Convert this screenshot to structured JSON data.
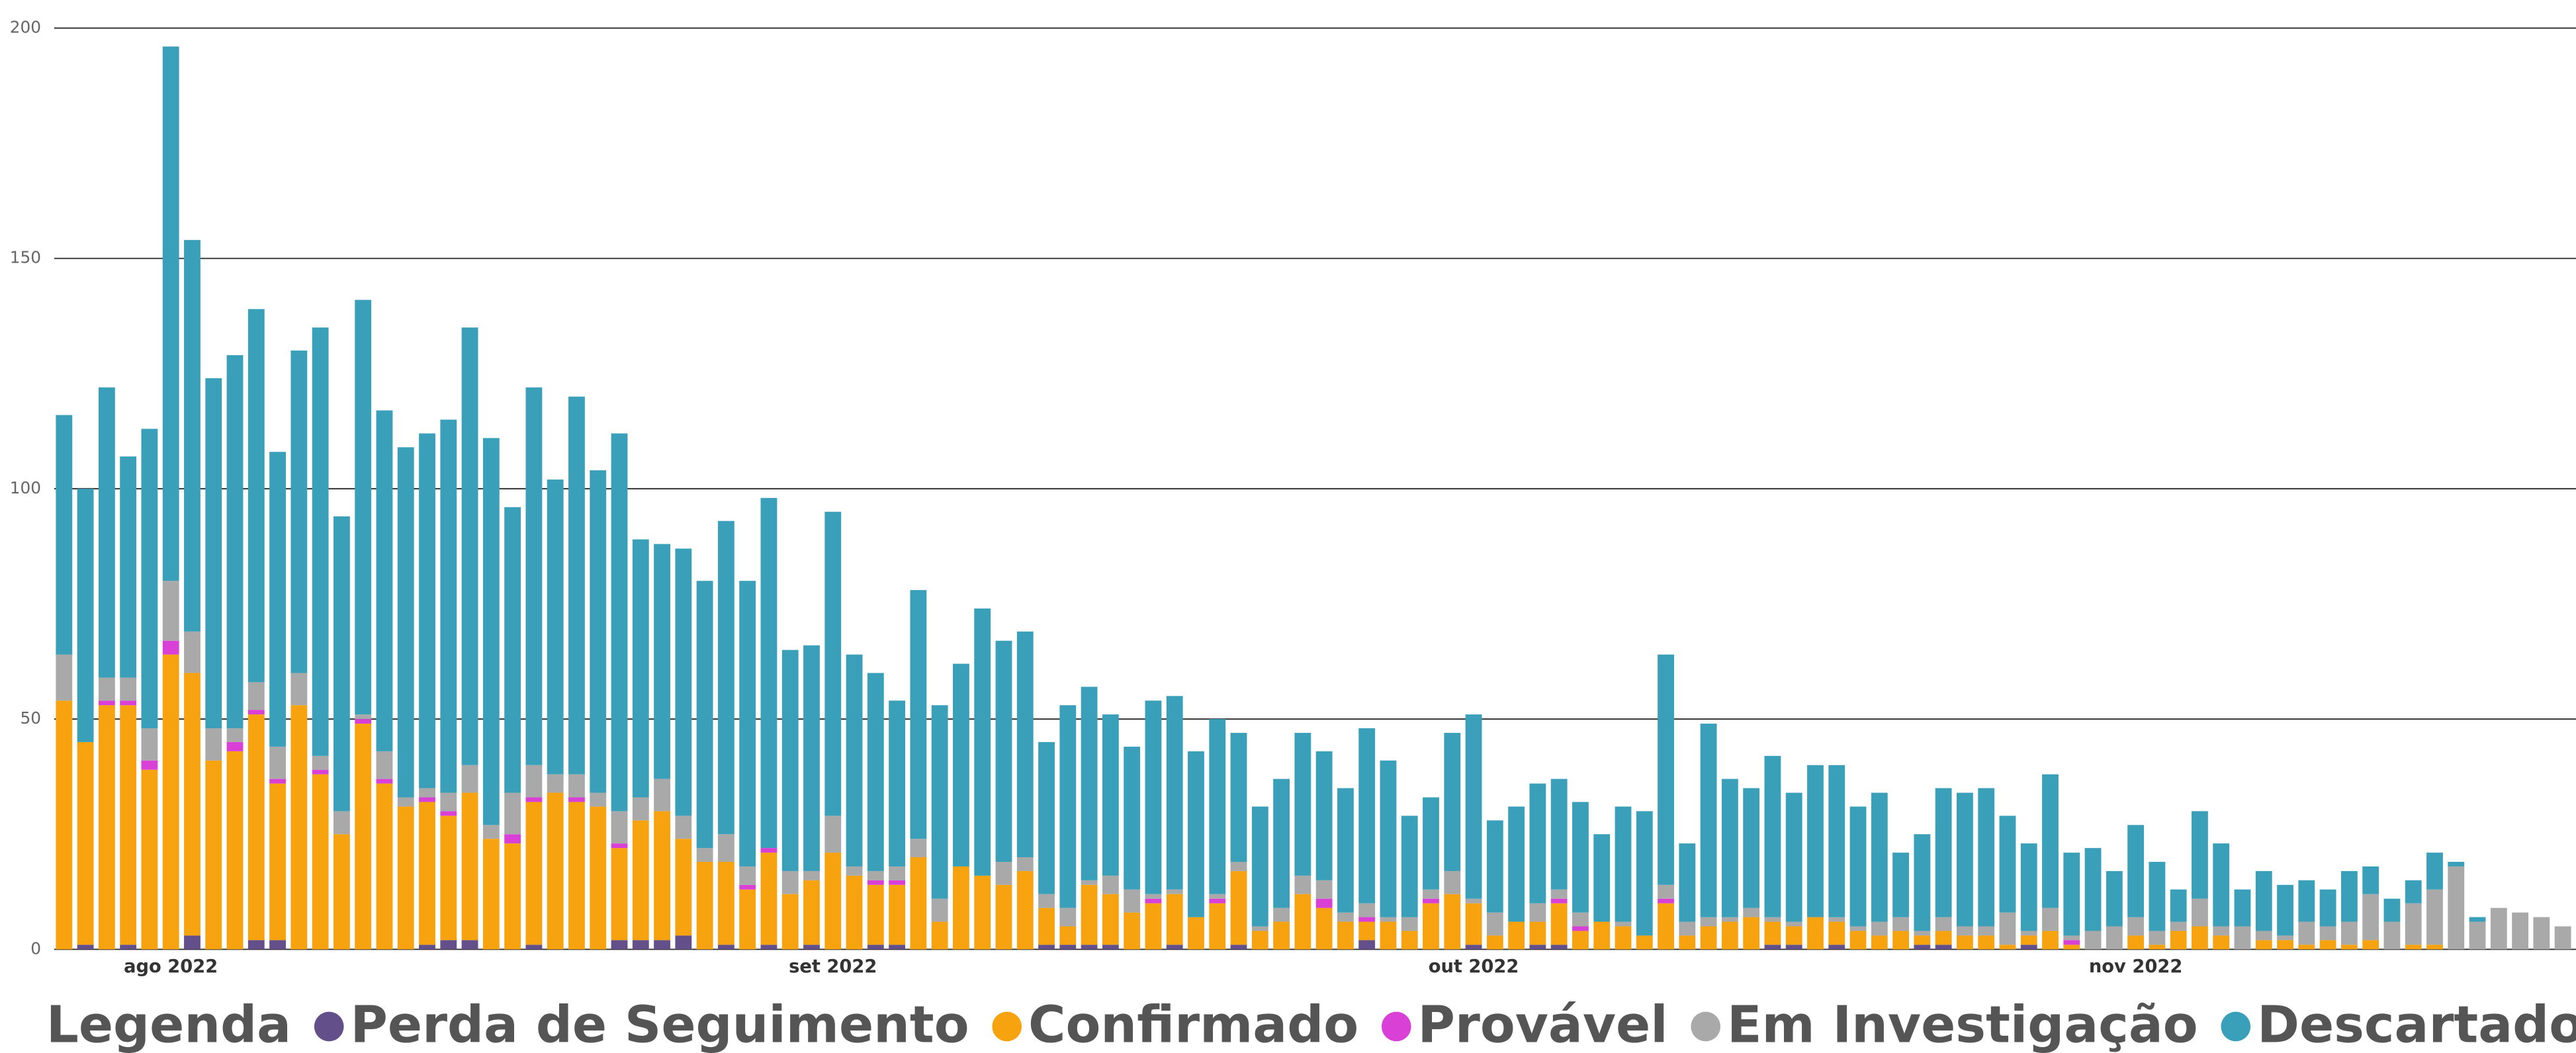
{
  "chart_data": {
    "type": "bar",
    "stacked": true,
    "categories": [
      null,
      null,
      null,
      null,
      null,
      "ago 2022",
      null,
      null,
      null,
      null,
      null,
      null,
      null,
      null,
      null,
      null,
      null,
      null,
      null,
      null,
      null,
      null,
      null,
      null,
      null,
      null,
      null,
      null,
      null,
      null,
      null,
      null,
      null,
      null,
      null,
      null,
      "set 2022",
      null,
      null,
      null,
      null,
      null,
      null,
      null,
      null,
      null,
      null,
      null,
      null,
      null,
      null,
      null,
      null,
      null,
      null,
      null,
      null,
      null,
      null,
      null,
      null,
      null,
      null,
      null,
      null,
      null,
      "out 2022",
      null,
      null,
      null,
      null,
      null,
      null,
      null,
      null,
      null,
      null,
      null,
      null,
      null,
      null,
      null,
      null,
      null,
      null,
      null,
      null,
      null,
      null,
      null,
      null,
      null,
      null,
      null,
      null,
      null,
      null,
      "nov 2022",
      null,
      null,
      null,
      null,
      null,
      null,
      null,
      null,
      null,
      null,
      null,
      null,
      null,
      null,
      null,
      null,
      null,
      null,
      null,
      null
    ],
    "series": [
      {
        "name": "Perda de Seguimento",
        "color": "#634f8a",
        "values": [
          0,
          1,
          0,
          1,
          0,
          0,
          3,
          0,
          0,
          2,
          2,
          0,
          0,
          0,
          0,
          0,
          0,
          1,
          2,
          2,
          0,
          0,
          1,
          0,
          0,
          0,
          2,
          2,
          2,
          3,
          0,
          1,
          0,
          1,
          0,
          1,
          0,
          0,
          1,
          1,
          0,
          0,
          0,
          0,
          0,
          0,
          1,
          1,
          1,
          1,
          0,
          0,
          1,
          0,
          0,
          1,
          0,
          0,
          0,
          0,
          0,
          2,
          0,
          0,
          0,
          0,
          1,
          0,
          0,
          1,
          1,
          0,
          0,
          0,
          0,
          0,
          0,
          0,
          0,
          0,
          1,
          1,
          0,
          1,
          0,
          0,
          0,
          1,
          1,
          0,
          0,
          0,
          1,
          0,
          0,
          0,
          0,
          0,
          0,
          0,
          0,
          0,
          0,
          0,
          0,
          0,
          0,
          0,
          0,
          0,
          0,
          0,
          0,
          0,
          0,
          0,
          0,
          0
        ]
      },
      {
        "name": "Confirmado",
        "color": "#f7a20f",
        "values": [
          54,
          44,
          53,
          52,
          39,
          64,
          57,
          41,
          43,
          49,
          34,
          53,
          38,
          25,
          49,
          36,
          31,
          31,
          27,
          32,
          24,
          23,
          31,
          34,
          32,
          31,
          20,
          26,
          28,
          21,
          19,
          18,
          13,
          20,
          12,
          14,
          21,
          16,
          13,
          13,
          20,
          6,
          18,
          16,
          14,
          17,
          8,
          4,
          13,
          11,
          8,
          10,
          11,
          7,
          10,
          16,
          4,
          6,
          12,
          9,
          6,
          4,
          6,
          4,
          10,
          12,
          9,
          3,
          6,
          5,
          9,
          4,
          6,
          5,
          3,
          10,
          3,
          5,
          6,
          7,
          5,
          4,
          7,
          5,
          4,
          3,
          4,
          2,
          3,
          3,
          3,
          1,
          2,
          4,
          1,
          0,
          0,
          3,
          1,
          4,
          5,
          3,
          0,
          2,
          2,
          1,
          2,
          1,
          2,
          0,
          1,
          1,
          0,
          0,
          0,
          0,
          0,
          0
        ]
      },
      {
        "name": "Provável",
        "color": "#d940d6",
        "values": [
          0,
          0,
          1,
          1,
          2,
          3,
          0,
          0,
          2,
          1,
          1,
          0,
          1,
          0,
          1,
          1,
          0,
          1,
          1,
          0,
          0,
          2,
          1,
          0,
          1,
          0,
          1,
          0,
          0,
          0,
          0,
          0,
          1,
          1,
          0,
          0,
          0,
          0,
          1,
          1,
          0,
          0,
          0,
          0,
          0,
          0,
          0,
          0,
          0,
          0,
          0,
          1,
          0,
          0,
          1,
          0,
          0,
          0,
          0,
          2,
          0,
          1,
          0,
          0,
          1,
          0,
          0,
          0,
          0,
          0,
          1,
          1,
          0,
          0,
          0,
          1,
          0,
          0,
          0,
          0,
          0,
          0,
          0,
          0,
          0,
          0,
          0,
          0,
          0,
          0,
          0,
          0,
          0,
          0,
          1,
          0,
          0,
          0,
          0,
          0,
          0,
          0,
          0,
          0,
          0,
          0,
          0,
          0,
          0,
          0,
          0,
          0,
          0,
          0,
          0,
          0,
          0,
          0
        ]
      },
      {
        "name": "Em Investigação",
        "color": "#a9a9a9",
        "values": [
          10,
          0,
          5,
          5,
          7,
          13,
          9,
          7,
          3,
          6,
          7,
          7,
          3,
          5,
          1,
          6,
          2,
          2,
          4,
          6,
          3,
          9,
          7,
          4,
          5,
          3,
          7,
          5,
          7,
          5,
          3,
          6,
          4,
          0,
          5,
          2,
          8,
          2,
          2,
          3,
          4,
          5,
          0,
          0,
          5,
          3,
          3,
          4,
          1,
          4,
          5,
          1,
          1,
          0,
          1,
          2,
          1,
          3,
          4,
          4,
          2,
          3,
          1,
          3,
          2,
          5,
          1,
          5,
          0,
          4,
          2,
          3,
          0,
          1,
          0,
          3,
          3,
          2,
          1,
          2,
          1,
          1,
          0,
          1,
          1,
          3,
          3,
          1,
          3,
          2,
          2,
          7,
          1,
          5,
          1,
          4,
          5,
          4,
          3,
          2,
          6,
          2,
          5,
          2,
          1,
          5,
          3,
          5,
          10,
          6,
          9,
          12,
          18,
          6,
          9,
          8,
          7,
          5
        ]
      },
      {
        "name": "Descartado",
        "color": "#3a9fb9",
        "values": [
          52,
          55,
          63,
          48,
          65,
          116,
          85,
          76,
          81,
          81,
          64,
          70,
          93,
          64,
          90,
          74,
          76,
          77,
          81,
          95,
          84,
          62,
          82,
          64,
          82,
          70,
          82,
          56,
          51,
          58,
          58,
          68,
          62,
          76,
          48,
          49,
          66,
          46,
          43,
          36,
          54,
          42,
          44,
          58,
          48,
          49,
          33,
          44,
          42,
          35,
          31,
          42,
          42,
          36,
          38,
          28,
          26,
          28,
          31,
          28,
          27,
          38,
          34,
          22,
          20,
          30,
          40,
          20,
          25,
          26,
          24,
          24,
          19,
          25,
          27,
          50,
          17,
          42,
          30,
          26,
          35,
          28,
          33,
          33,
          26,
          28,
          14,
          21,
          28,
          29,
          30,
          21,
          19,
          29,
          18,
          18,
          12,
          20,
          15,
          7,
          19,
          18,
          8,
          13,
          11,
          9,
          8,
          11,
          6,
          5,
          5,
          8,
          1,
          1,
          0,
          0,
          0,
          0
        ]
      }
    ],
    "ylim": [
      0,
      200
    ],
    "yticks": [
      0,
      50,
      100,
      150,
      200
    ],
    "grid": true,
    "legend_title": "Legenda",
    "legend": "bottom"
  }
}
